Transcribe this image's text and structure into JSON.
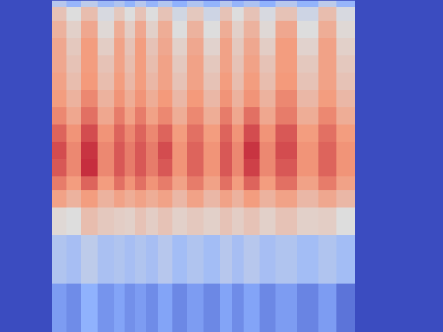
{
  "chart_data": {
    "type": "heatmap",
    "tick_labels": false,
    "xlim": [
      0,
      640
    ],
    "ylim": [
      0,
      480
    ],
    "zlim": [
      0,
      1
    ],
    "x_edges": [
      75,
      96,
      117,
      141,
      165,
      180,
      195,
      211,
      228,
      249,
      270,
      294,
      318,
      335,
      352,
      375,
      398,
      429,
      460,
      486,
      513
    ],
    "y_edges": [
      0,
      10,
      30,
      55,
      80,
      105,
      130,
      155,
      180,
      205,
      230,
      255,
      275,
      300,
      340,
      410,
      480
    ],
    "cells": [
      [
        0.38,
        0.28,
        0.4,
        0.3,
        0.36,
        0.27,
        0.38,
        0.28,
        0.37,
        0.26,
        0.36,
        0.27,
        0.38,
        0.28,
        0.35,
        0.26,
        0.38,
        0.27,
        0.4,
        0.28
      ],
      [
        0.6,
        0.5,
        0.62,
        0.48,
        0.58,
        0.5,
        0.6,
        0.5,
        0.6,
        0.46,
        0.58,
        0.45,
        0.6,
        0.5,
        0.6,
        0.48,
        0.6,
        0.45,
        0.62,
        0.48
      ],
      [
        0.66,
        0.55,
        0.7,
        0.52,
        0.68,
        0.56,
        0.7,
        0.55,
        0.68,
        0.5,
        0.66,
        0.5,
        0.68,
        0.55,
        0.66,
        0.52,
        0.7,
        0.5,
        0.68,
        0.52
      ],
      [
        0.7,
        0.58,
        0.74,
        0.56,
        0.72,
        0.6,
        0.74,
        0.6,
        0.7,
        0.55,
        0.7,
        0.54,
        0.72,
        0.58,
        0.7,
        0.56,
        0.74,
        0.54,
        0.72,
        0.55
      ],
      [
        0.7,
        0.6,
        0.74,
        0.6,
        0.72,
        0.62,
        0.74,
        0.62,
        0.72,
        0.58,
        0.72,
        0.58,
        0.72,
        0.6,
        0.72,
        0.6,
        0.74,
        0.58,
        0.72,
        0.58
      ],
      [
        0.72,
        0.62,
        0.75,
        0.62,
        0.74,
        0.64,
        0.74,
        0.64,
        0.72,
        0.6,
        0.72,
        0.6,
        0.74,
        0.62,
        0.74,
        0.62,
        0.75,
        0.6,
        0.72,
        0.6
      ],
      [
        0.74,
        0.66,
        0.78,
        0.66,
        0.76,
        0.68,
        0.76,
        0.68,
        0.75,
        0.64,
        0.75,
        0.64,
        0.76,
        0.66,
        0.76,
        0.66,
        0.78,
        0.64,
        0.74,
        0.64
      ],
      [
        0.78,
        0.7,
        0.82,
        0.7,
        0.8,
        0.72,
        0.8,
        0.72,
        0.78,
        0.68,
        0.78,
        0.68,
        0.8,
        0.7,
        0.82,
        0.7,
        0.8,
        0.68,
        0.78,
        0.68
      ],
      [
        0.84,
        0.76,
        0.88,
        0.76,
        0.84,
        0.78,
        0.84,
        0.78,
        0.84,
        0.74,
        0.82,
        0.74,
        0.84,
        0.76,
        0.88,
        0.76,
        0.86,
        0.74,
        0.82,
        0.74
      ],
      [
        0.88,
        0.78,
        0.92,
        0.78,
        0.86,
        0.8,
        0.86,
        0.8,
        0.88,
        0.76,
        0.84,
        0.76,
        0.86,
        0.78,
        0.92,
        0.78,
        0.88,
        0.76,
        0.84,
        0.76
      ],
      [
        0.86,
        0.78,
        0.93,
        0.78,
        0.86,
        0.8,
        0.86,
        0.8,
        0.86,
        0.76,
        0.84,
        0.76,
        0.86,
        0.78,
        0.9,
        0.78,
        0.86,
        0.76,
        0.84,
        0.76
      ],
      [
        0.8,
        0.74,
        0.84,
        0.74,
        0.82,
        0.76,
        0.82,
        0.76,
        0.8,
        0.72,
        0.8,
        0.72,
        0.82,
        0.74,
        0.84,
        0.74,
        0.82,
        0.72,
        0.8,
        0.72
      ],
      [
        0.72,
        0.66,
        0.74,
        0.66,
        0.72,
        0.68,
        0.72,
        0.68,
        0.72,
        0.64,
        0.72,
        0.64,
        0.72,
        0.66,
        0.74,
        0.66,
        0.72,
        0.64,
        0.7,
        0.64
      ],
      [
        0.52,
        0.5,
        0.62,
        0.58,
        0.56,
        0.55,
        0.6,
        0.56,
        0.6,
        0.55,
        0.58,
        0.55,
        0.6,
        0.56,
        0.6,
        0.55,
        0.6,
        0.55,
        0.56,
        0.5
      ],
      [
        0.36,
        0.33,
        0.4,
        0.34,
        0.36,
        0.33,
        0.36,
        0.33,
        0.38,
        0.32,
        0.36,
        0.32,
        0.38,
        0.33,
        0.38,
        0.33,
        0.36,
        0.32,
        0.36,
        0.32
      ],
      [
        0.2,
        0.16,
        0.26,
        0.18,
        0.22,
        0.17,
        0.2,
        0.16,
        0.22,
        0.15,
        0.2,
        0.15,
        0.22,
        0.16,
        0.22,
        0.15,
        0.2,
        0.14,
        0.2,
        0.1
      ]
    ]
  }
}
